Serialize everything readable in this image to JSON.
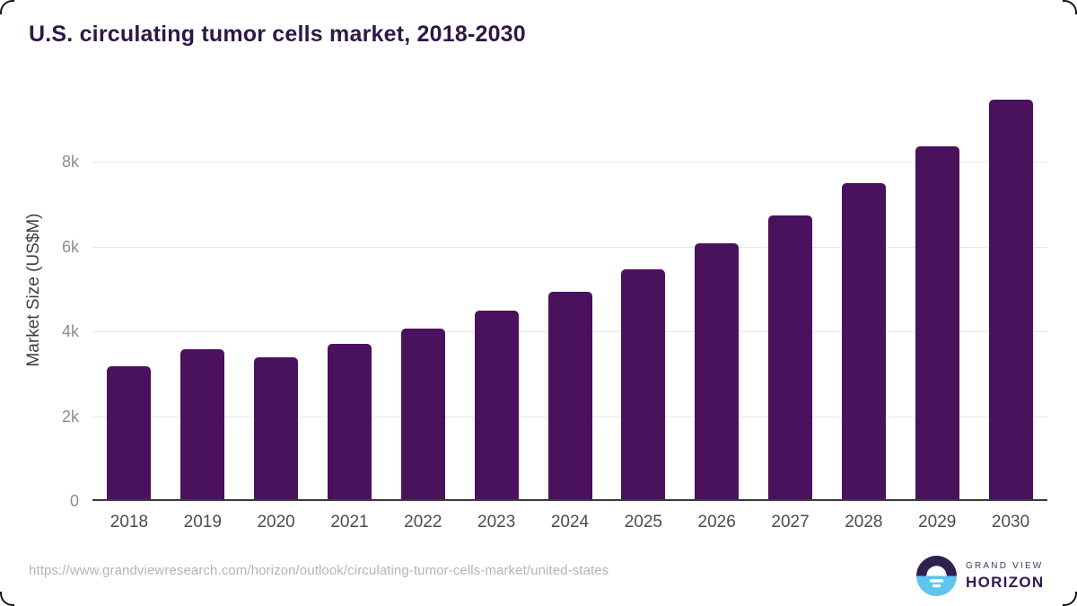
{
  "header": {
    "title": "U.S. circulating tumor cells market, 2018-2030"
  },
  "chart_data": {
    "type": "bar",
    "title": "U.S. circulating tumor cells market, 2018-2030",
    "xlabel": "",
    "ylabel": "Market Size (US$M)",
    "categories": [
      "2018",
      "2019",
      "2020",
      "2021",
      "2022",
      "2023",
      "2024",
      "2025",
      "2026",
      "2027",
      "2028",
      "2029",
      "2030"
    ],
    "values": [
      3170,
      3580,
      3390,
      3700,
      4060,
      4490,
      4940,
      5470,
      6070,
      6730,
      7490,
      8360,
      9460
    ],
    "ylim": [
      0,
      9800
    ],
    "yticks": [
      {
        "value": 0,
        "label": "0"
      },
      {
        "value": 2000,
        "label": "2k"
      },
      {
        "value": 4000,
        "label": "4k"
      },
      {
        "value": 6000,
        "label": "6k"
      },
      {
        "value": 8000,
        "label": "8k"
      }
    ],
    "grid": "horizontal",
    "legend": "none",
    "bar_color": "#4a115c"
  },
  "footer": {
    "url": "https://www.grandviewresearch.com/horizon/outlook/circulating-tumor-cells-market/united-states",
    "logo": {
      "line1": "GRAND VIEW",
      "line2": "HORIZON"
    }
  },
  "colors": {
    "bar": "#4a115c",
    "title_text": "#2d1847",
    "axis_line": "#3a3a3a",
    "gridline": "#e7e7e7",
    "logo_top": "#2e2152",
    "logo_bottom": "#5fc4ee"
  }
}
